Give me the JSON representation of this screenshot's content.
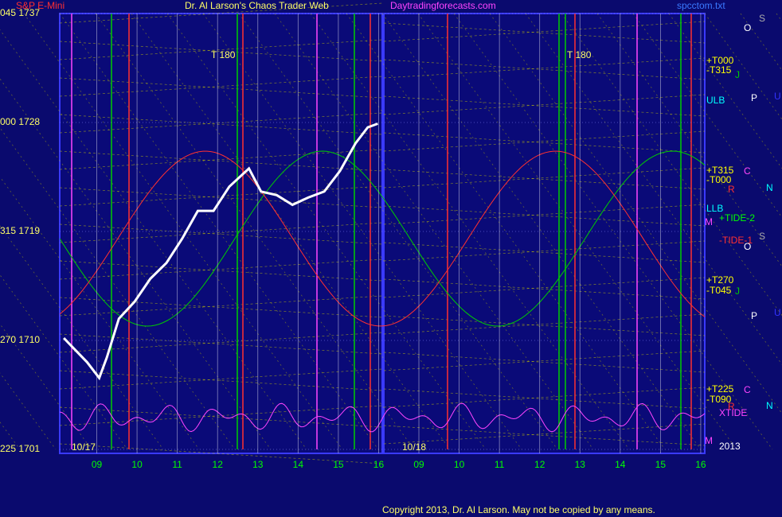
{
  "chart_data": {
    "type": "line",
    "title": "Dr. Al Larson's Chaos Trader Web",
    "instrument": "S&P E-Mini",
    "website": "Daytradingforecasts.com",
    "file": "spcctom.txt",
    "copyright": "Copyright 2013, Dr. Al Larson. May not be copied by any means.",
    "dates": [
      "10/17",
      "10/18"
    ],
    "turn_labels": [
      "T  180",
      "T  180"
    ],
    "x": [
      8.18,
      8.47,
      8.76,
      9.06,
      9.25,
      9.55,
      9.94,
      10.33,
      10.73,
      11.12,
      11.51,
      11.9,
      12.29,
      12.78,
      13.08,
      13.47,
      13.86,
      14.25,
      14.65,
      15.04,
      15.43,
      15.73,
      15.98
    ],
    "series": [
      {
        "name": "S&P E-Mini",
        "color": "#ffffff",
        "values": [
          1710.2,
          1709.2,
          1708.2,
          1706.9,
          1708.6,
          1711.8,
          1713.2,
          1715.1,
          1716.4,
          1718.4,
          1720.7,
          1720.7,
          1722.7,
          1724.2,
          1722.3,
          1722,
          1721.2,
          1721.8,
          1722.3,
          1724,
          1726.3,
          1727.6,
          1727.9
        ]
      }
    ],
    "xlim": [
      8.08,
      24.1
    ],
    "xticks": [
      {
        "value": 9,
        "label": "09"
      },
      10,
      11,
      12,
      13,
      14,
      15,
      16,
      {
        "value": 17,
        "label": "09"
      },
      {
        "value": 18,
        "label": "10"
      },
      {
        "value": 19,
        "label": "11"
      },
      {
        "value": 20,
        "label": "12"
      },
      {
        "value": 21,
        "label": "13"
      },
      {
        "value": 22,
        "label": "14"
      },
      {
        "value": 23,
        "label": "15"
      },
      {
        "value": 24,
        "label": "16"
      }
    ],
    "ylim": [
      1701,
      1737
    ],
    "yticks": [
      {
        "value": 1701,
        "label": "225  1701"
      },
      {
        "value": 1710,
        "label": "270  1710"
      },
      {
        "value": 1719,
        "label": "315  1719"
      },
      {
        "value": 1728,
        "label": "000  1728"
      },
      {
        "value": 1737,
        "label": "045  1737"
      }
    ],
    "annotations": [
      {
        "text": "+T000",
        "color": "#ffff00"
      },
      {
        "text": "-T315",
        "color": "#ffff00"
      },
      {
        "text": "ULB",
        "color": "#00ffff"
      },
      {
        "text": "+T315",
        "color": "#ffff00"
      },
      {
        "text": "-T000",
        "color": "#ffff00"
      },
      {
        "text": "LLB",
        "color": "#00ffff"
      },
      {
        "text": "+TIDE-2",
        "color": "#00ff00"
      },
      {
        "text": "-TIDE-1",
        "color": "#ff3030"
      },
      {
        "text": "+T270",
        "color": "#ffff00"
      },
      {
        "text": "-T045",
        "color": "#ffff00"
      },
      {
        "text": "+T225",
        "color": "#ffff00"
      },
      {
        "text": "-T090",
        "color": "#ffff00"
      },
      {
        "text": "XTIDE",
        "color": "#ff44ff"
      },
      {
        "text": "2013",
        "color": "#ffffff"
      },
      {
        "text": "O",
        "color": "#ffffff"
      },
      {
        "text": "S",
        "color": "#aaaaaa"
      },
      {
        "text": "J",
        "color": "#00cc00"
      },
      {
        "text": "P",
        "color": "#ffffff"
      },
      {
        "text": "U",
        "color": "#3333ff"
      },
      {
        "text": "C",
        "color": "#ff44ff"
      },
      {
        "text": "R",
        "color": "#ff3030"
      },
      {
        "text": "N",
        "color": "#00ffff"
      },
      {
        "text": "M",
        "color": "#ff44ff"
      },
      {
        "text": "S",
        "color": "#aaaaaa"
      },
      {
        "text": "O",
        "color": "#ffffff"
      },
      {
        "text": "J",
        "color": "#00cc00"
      },
      {
        "text": "P",
        "color": "#ffffff"
      },
      {
        "text": "U",
        "color": "#3333ff"
      },
      {
        "text": "C",
        "color": "#ff44ff"
      },
      {
        "text": "R",
        "color": "#ff3030"
      },
      {
        "text": "N",
        "color": "#00ffff"
      },
      {
        "text": "M",
        "color": "#ff44ff"
      }
    ],
    "grid": true
  }
}
